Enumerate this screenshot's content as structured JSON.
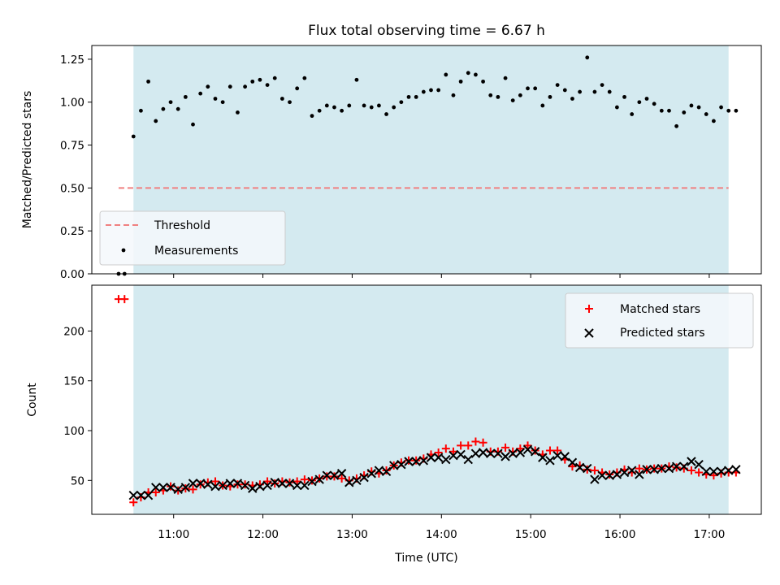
{
  "chart_data": {
    "title": "Flux total observing time = 6.67 h",
    "xlabel": "Time (UTC)",
    "x_ticks": [
      "11:00",
      "12:00",
      "13:00",
      "14:00",
      "15:00",
      "16:00",
      "17:00"
    ],
    "xlim": [
      "10:05",
      "17:35"
    ],
    "observing_window": [
      "10:33",
      "17:13"
    ],
    "highlight_color": "#d4eaf0",
    "panels": [
      {
        "type": "scatter",
        "ylabel": "Matched/Predicted stars",
        "ylim": [
          0,
          1.33
        ],
        "y_ticks": [
          "0.00",
          "0.25",
          "0.50",
          "0.75",
          "1.00",
          "1.25"
        ],
        "y_tick_values": [
          0,
          0.25,
          0.5,
          0.75,
          1.0,
          1.25
        ],
        "legend": [
          "Threshold",
          "Measurements"
        ],
        "legend_position": "lower-left",
        "threshold": {
          "name": "Threshold",
          "y": 0.5,
          "x_range": [
            "10:23",
            "17:13"
          ],
          "color": "#f08080"
        },
        "series": [
          {
            "name": "Measurements",
            "color": "#000000",
            "x": [
              "10:23",
              "10:27",
              "10:33",
              "10:38",
              "10:43",
              "10:48",
              "10:53",
              "10:58",
              "11:03",
              "11:08",
              "11:13",
              "11:18",
              "11:23",
              "11:28",
              "11:33",
              "11:38",
              "11:43",
              "11:48",
              "11:53",
              "11:58",
              "12:03",
              "12:08",
              "12:13",
              "12:18",
              "12:23",
              "12:28",
              "12:33",
              "12:38",
              "12:43",
              "12:48",
              "12:53",
              "12:58",
              "13:03",
              "13:08",
              "13:13",
              "13:18",
              "13:23",
              "13:28",
              "13:33",
              "13:38",
              "13:43",
              "13:48",
              "13:53",
              "13:58",
              "14:03",
              "14:08",
              "14:13",
              "14:18",
              "14:23",
              "14:28",
              "14:33",
              "14:38",
              "14:43",
              "14:48",
              "14:53",
              "14:58",
              "15:03",
              "15:08",
              "15:13",
              "15:18",
              "15:23",
              "15:28",
              "15:33",
              "15:38",
              "15:43",
              "15:48",
              "15:53",
              "15:58",
              "16:03",
              "16:08",
              "16:13",
              "16:18",
              "16:23",
              "16:28",
              "16:33",
              "16:38",
              "16:43",
              "16:48",
              "16:53",
              "16:58",
              "17:03",
              "17:08",
              "17:13",
              "17:18"
            ],
            "y": [
              0.0,
              0.0,
              0.8,
              0.95,
              1.12,
              0.89,
              0.96,
              1.0,
              0.96,
              1.03,
              0.87,
              1.05,
              1.09,
              1.02,
              1.0,
              1.09,
              0.94,
              1.09,
              1.12,
              1.13,
              1.1,
              1.14,
              1.02,
              1.0,
              1.08,
              1.14,
              0.92,
              0.95,
              0.98,
              0.97,
              0.95,
              0.98,
              1.13,
              0.98,
              0.97,
              0.98,
              0.93,
              0.97,
              1.0,
              1.03,
              1.03,
              1.06,
              1.07,
              1.07,
              1.16,
              1.04,
              1.12,
              1.17,
              1.16,
              1.12,
              1.04,
              1.03,
              1.14,
              1.01,
              1.04,
              1.08,
              1.08,
              0.98,
              1.03,
              1.1,
              1.07,
              1.02,
              1.06,
              1.26,
              1.06,
              1.1,
              1.06,
              0.97,
              1.03,
              0.93,
              1.0,
              1.02,
              0.99,
              0.95,
              0.95,
              0.86,
              0.94,
              0.98,
              0.97,
              0.93,
              0.89,
              0.97,
              0.95,
              0.95
            ]
          }
        ]
      },
      {
        "type": "scatter",
        "ylabel": "Count",
        "ylim": [
          16,
          246
        ],
        "y_ticks": [
          "50",
          "100",
          "150",
          "200"
        ],
        "y_tick_values": [
          50,
          100,
          150,
          200
        ],
        "legend": [
          "Matched stars",
          "Predicted stars"
        ],
        "legend_position": "upper-right",
        "series": [
          {
            "name": "Matched stars",
            "color": "#ff0000",
            "x": [
              "10:23",
              "10:27",
              "10:33",
              "10:38",
              "10:43",
              "10:48",
              "10:53",
              "10:58",
              "11:03",
              "11:08",
              "11:13",
              "11:18",
              "11:23",
              "11:28",
              "11:33",
              "11:38",
              "11:43",
              "11:48",
              "11:53",
              "11:58",
              "12:03",
              "12:08",
              "12:13",
              "12:18",
              "12:23",
              "12:28",
              "12:33",
              "12:38",
              "12:43",
              "12:48",
              "12:53",
              "12:58",
              "13:03",
              "13:08",
              "13:13",
              "13:18",
              "13:23",
              "13:28",
              "13:33",
              "13:38",
              "13:43",
              "13:48",
              "13:53",
              "13:58",
              "14:03",
              "14:08",
              "14:13",
              "14:18",
              "14:23",
              "14:28",
              "14:33",
              "14:38",
              "14:43",
              "14:48",
              "14:53",
              "14:58",
              "15:03",
              "15:08",
              "15:13",
              "15:18",
              "15:23",
              "15:28",
              "15:33",
              "15:38",
              "15:43",
              "15:48",
              "15:53",
              "15:58",
              "16:03",
              "16:08",
              "16:13",
              "16:18",
              "16:23",
              "16:28",
              "16:33",
              "16:38",
              "16:43",
              "16:48",
              "16:53",
              "16:58",
              "17:03",
              "17:08",
              "17:13",
              "17:18"
            ],
            "y": [
              232,
              232,
              28,
              33,
              38,
              38,
              40,
              44,
              40,
              42,
              41,
              46,
              48,
              49,
              45,
              44,
              46,
              46,
              45,
              46,
              49,
              47,
              49,
              48,
              49,
              51,
              50,
              52,
              54,
              54,
              52,
              50,
              52,
              55,
              59,
              57,
              60,
              65,
              68,
              70,
              70,
              72,
              76,
              78,
              82,
              79,
              85,
              85,
              89,
              88,
              79,
              79,
              83,
              79,
              82,
              85,
              80,
              76,
              80,
              80,
              71,
              64,
              65,
              61,
              60,
              58,
              56,
              58,
              61,
              58,
              62,
              61,
              62,
              62,
              64,
              63,
              62,
              60,
              58,
              56,
              55,
              57,
              58,
              58
            ]
          },
          {
            "name": "Predicted stars",
            "color": "#000000",
            "x": [
              "10:33",
              "10:38",
              "10:43",
              "10:48",
              "10:53",
              "10:58",
              "11:03",
              "11:08",
              "11:13",
              "11:18",
              "11:23",
              "11:28",
              "11:33",
              "11:38",
              "11:43",
              "11:48",
              "11:53",
              "11:58",
              "12:03",
              "12:08",
              "12:13",
              "12:18",
              "12:23",
              "12:28",
              "12:33",
              "12:38",
              "12:43",
              "12:48",
              "12:53",
              "12:58",
              "13:03",
              "13:08",
              "13:13",
              "13:18",
              "13:23",
              "13:28",
              "13:33",
              "13:38",
              "13:43",
              "13:48",
              "13:53",
              "13:58",
              "14:03",
              "14:08",
              "14:13",
              "14:18",
              "14:23",
              "14:28",
              "14:33",
              "14:38",
              "14:43",
              "14:48",
              "14:53",
              "14:58",
              "15:03",
              "15:08",
              "15:13",
              "15:18",
              "15:23",
              "15:28",
              "15:33",
              "15:38",
              "15:43",
              "15:48",
              "15:53",
              "15:58",
              "16:03",
              "16:08",
              "16:13",
              "16:18",
              "16:23",
              "16:28",
              "16:33",
              "16:38",
              "16:43",
              "16:48",
              "16:53",
              "16:58",
              "17:03",
              "17:08",
              "17:13",
              "17:18"
            ],
            "y": [
              35,
              35,
              35,
              43,
              43,
              43,
              41,
              43,
              47,
              47,
              46,
              44,
              45,
              47,
              47,
              45,
              42,
              44,
              45,
              48,
              47,
              47,
              45,
              45,
              49,
              51,
              55,
              55,
              57,
              48,
              50,
              53,
              57,
              60,
              59,
              65,
              66,
              69,
              69,
              70,
              73,
              73,
              71,
              75,
              76,
              71,
              77,
              78,
              77,
              77,
              74,
              77,
              78,
              81,
              79,
              73,
              70,
              75,
              74,
              68,
              63,
              62,
              51,
              55,
              55,
              56,
              58,
              60,
              56,
              61,
              61,
              62,
              62,
              64,
              64,
              69,
              66,
              59,
              59,
              59,
              60,
              61
            ]
          }
        ]
      }
    ]
  }
}
